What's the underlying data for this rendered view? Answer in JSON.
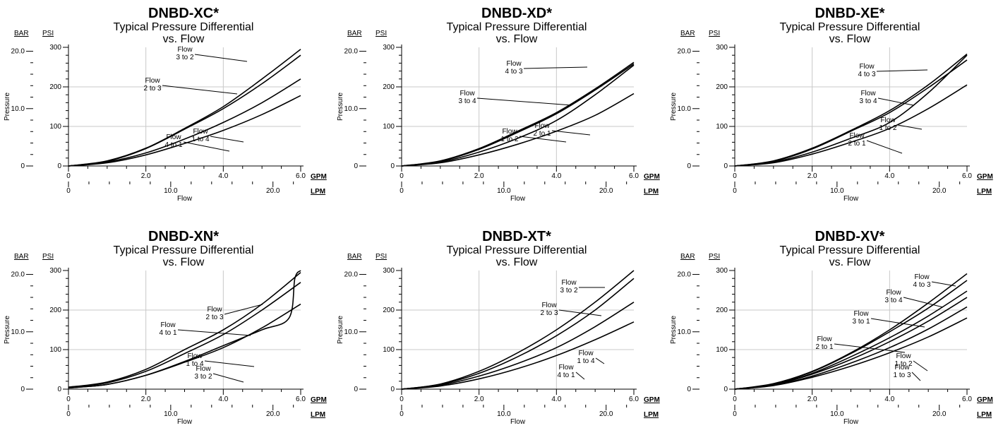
{
  "chart_data": [
    {
      "type": "line",
      "title": "DNBD-XC*",
      "subtitle_line1": "Typical Pressure Differential",
      "subtitle_line2": "vs. Flow",
      "xlabel": "Flow",
      "ylabel": "Pressure",
      "y_units": [
        "BAR",
        "PSI"
      ],
      "x_units": [
        "GPM",
        "LPM"
      ],
      "xlim": [
        0,
        6
      ],
      "ylim": [
        0,
        300
      ],
      "grid": true,
      "series": [
        {
          "name": "Flow 3 to 2",
          "label": [
            "Flow",
            "3 to 2"
          ],
          "x": [
            0,
            1,
            2,
            3,
            4,
            5,
            6
          ],
          "y": [
            0,
            13,
            45,
            95,
            150,
            220,
            295
          ]
        },
        {
          "name": "Flow 2 to 3",
          "label": [
            "Flow",
            "2 to 3"
          ],
          "x": [
            0,
            1,
            2,
            3,
            4,
            5,
            6
          ],
          "y": [
            0,
            12,
            44,
            93,
            145,
            208,
            280
          ]
        },
        {
          "name": "Flow 1 to 4",
          "label": [
            "Flow",
            "1 to 4"
          ],
          "x": [
            0,
            1,
            2,
            3,
            4,
            5,
            6
          ],
          "y": [
            0,
            10,
            33,
            68,
            110,
            160,
            220
          ]
        },
        {
          "name": "Flow 4 to 1",
          "label": [
            "Flow",
            "4 to 1"
          ],
          "x": [
            0,
            1,
            2,
            3,
            4,
            5,
            6
          ],
          "y": [
            0,
            8,
            28,
            57,
            90,
            130,
            178
          ]
        }
      ]
    },
    {
      "type": "line",
      "title": "DNBD-XD*",
      "subtitle_line1": "Typical Pressure Differential",
      "subtitle_line2": "vs. Flow",
      "xlabel": "Flow",
      "ylabel": "Pressure",
      "y_units": [
        "BAR",
        "PSI"
      ],
      "x_units": [
        "GPM",
        "LPM"
      ],
      "xlim": [
        0,
        6
      ],
      "ylim": [
        0,
        300
      ],
      "grid": true,
      "series": [
        {
          "name": "Flow 4 to 3",
          "label": [
            "Flow",
            "4 to 3"
          ],
          "x": [
            0,
            1,
            2,
            3,
            4,
            5,
            6
          ],
          "y": [
            0,
            13,
            44,
            88,
            135,
            195,
            262
          ]
        },
        {
          "name": "Flow 3 to 4",
          "label": [
            "Flow",
            "3 to 4"
          ],
          "x": [
            0,
            1,
            2,
            3,
            4,
            5,
            6
          ],
          "y": [
            0,
            12,
            42,
            85,
            132,
            192,
            258
          ]
        },
        {
          "name": "Flow 2 to 1",
          "label": [
            "Flow",
            "2 to 1"
          ],
          "x": [
            0,
            1,
            2,
            3,
            4,
            5,
            6
          ],
          "y": [
            0,
            10,
            35,
            70,
            115,
            180,
            255
          ]
        },
        {
          "name": "Flow 1 to 2",
          "label": [
            "Flow",
            "1 to 2"
          ],
          "x": [
            0,
            1,
            2,
            3,
            4,
            5,
            6
          ],
          "y": [
            0,
            8,
            28,
            55,
            88,
            128,
            183
          ]
        }
      ]
    },
    {
      "type": "line",
      "title": "DNBD-XE*",
      "subtitle_line1": "Typical Pressure Differential",
      "subtitle_line2": "vs. Flow",
      "xlabel": "Flow",
      "ylabel": "Pressure",
      "y_units": [
        "BAR",
        "PSI"
      ],
      "x_units": [
        "GPM",
        "LPM"
      ],
      "xlim": [
        0,
        6
      ],
      "ylim": [
        0,
        300
      ],
      "grid": true,
      "series": [
        {
          "name": "Flow 4 to 3",
          "label": [
            "Flow",
            "4 to 3"
          ],
          "x": [
            0,
            1,
            2,
            3,
            4,
            5,
            6
          ],
          "y": [
            0,
            13,
            45,
            90,
            140,
            205,
            283
          ]
        },
        {
          "name": "Flow 3 to 4",
          "label": [
            "Flow",
            "3 to 4"
          ],
          "x": [
            0,
            1,
            2,
            3,
            4,
            5,
            6
          ],
          "y": [
            0,
            12,
            43,
            88,
            135,
            198,
            268
          ]
        },
        {
          "name": "Flow 2 to 1",
          "label": [
            "Flow",
            "2 to 1"
          ],
          "x": [
            0,
            1,
            2,
            3,
            4,
            5,
            6
          ],
          "y": [
            0,
            10,
            35,
            70,
            110,
            185,
            280
          ]
        },
        {
          "name": "Flow 1 to 2",
          "label": [
            "Flow",
            "1 to 2"
          ],
          "x": [
            0,
            1,
            2,
            3,
            4,
            5,
            6
          ],
          "y": [
            0,
            8,
            30,
            60,
            95,
            145,
            205
          ]
        }
      ]
    },
    {
      "type": "line",
      "title": "DNBD-XN*",
      "subtitle_line1": "Typical Pressure Differential",
      "subtitle_line2": "vs. Flow",
      "xlabel": "Flow",
      "ylabel": "Pressure",
      "y_units": [
        "BAR",
        "PSI"
      ],
      "x_units": [
        "GPM",
        "LPM"
      ],
      "xlim": [
        0,
        6
      ],
      "ylim": [
        0,
        300
      ],
      "grid": true,
      "series": [
        {
          "name": "Flow 2 to 3",
          "label": [
            "Flow",
            "2 to 3"
          ],
          "x": [
            0,
            1,
            2,
            3,
            4,
            5,
            6
          ],
          "y": [
            5,
            18,
            50,
            100,
            150,
            215,
            295
          ]
        },
        {
          "name": "Flow 4 to 1",
          "label": [
            "Flow",
            "4 to 1"
          ],
          "x": [
            0,
            1,
            2,
            3,
            4,
            5,
            6
          ],
          "y": [
            5,
            16,
            45,
            90,
            138,
            200,
            270
          ]
        },
        {
          "name": "Flow 1 to 4",
          "label": [
            "Flow",
            "1 to 4"
          ],
          "x": [
            0,
            1,
            2,
            3,
            4,
            5,
            6
          ],
          "y": [
            3,
            12,
            35,
            68,
            105,
            155,
            215
          ]
        },
        {
          "name": "Flow 3 to 2",
          "label": [
            "Flow",
            "3 to 2"
          ],
          "x": [
            0,
            1,
            2,
            3,
            4,
            5,
            5.7,
            5.85,
            6
          ],
          "y": [
            3,
            12,
            35,
            70,
            110,
            150,
            180,
            280,
            300
          ]
        }
      ]
    },
    {
      "type": "line",
      "title": "DNBD-XT*",
      "subtitle_line1": "Typical Pressure Differential",
      "subtitle_line2": "vs. Flow",
      "xlabel": "Flow",
      "ylabel": "Pressure",
      "y_units": [
        "BAR",
        "PSI"
      ],
      "x_units": [
        "GPM",
        "LPM"
      ],
      "xlim": [
        0,
        6
      ],
      "ylim": [
        0,
        300
      ],
      "grid": true,
      "series": [
        {
          "name": "Flow 3 to 2",
          "label": [
            "Flow",
            "3 to 2"
          ],
          "x": [
            0,
            1,
            2,
            3,
            4,
            5,
            6
          ],
          "y": [
            0,
            13,
            45,
            92,
            150,
            220,
            300
          ]
        },
        {
          "name": "Flow 2 to 3",
          "label": [
            "Flow",
            "2 to 3"
          ],
          "x": [
            0,
            1,
            2,
            3,
            4,
            5,
            6
          ],
          "y": [
            0,
            12,
            40,
            82,
            135,
            200,
            280
          ]
        },
        {
          "name": "Flow 1 to 4",
          "label": [
            "Flow",
            "1 to 4"
          ],
          "x": [
            0,
            1,
            2,
            3,
            4,
            5,
            6
          ],
          "y": [
            0,
            10,
            33,
            65,
            105,
            158,
            220
          ]
        },
        {
          "name": "Flow 4 to 1",
          "label": [
            "Flow",
            "4 to 1"
          ],
          "x": [
            0,
            1,
            2,
            3,
            4,
            5,
            6
          ],
          "y": [
            0,
            8,
            26,
            52,
            85,
            125,
            170
          ]
        }
      ]
    },
    {
      "type": "line",
      "title": "DNBD-XV*",
      "subtitle_line1": "Typical Pressure Differential",
      "subtitle_line2": "vs. Flow",
      "xlabel": "Flow",
      "ylabel": "Pressure",
      "y_units": [
        "BAR",
        "PSI"
      ],
      "x_units": [
        "GPM",
        "LPM"
      ],
      "xlim": [
        0,
        6
      ],
      "ylim": [
        0,
        300
      ],
      "grid": true,
      "series": [
        {
          "name": "Flow 4 to 3",
          "label": [
            "Flow",
            "4 to 3"
          ],
          "x": [
            0,
            1,
            2,
            3,
            4,
            5,
            6
          ],
          "y": [
            0,
            14,
            45,
            92,
            150,
            218,
            292
          ]
        },
        {
          "name": "Flow 3 to 4",
          "label": [
            "Flow",
            "3 to 4"
          ],
          "x": [
            0,
            1,
            2,
            3,
            4,
            5,
            6
          ],
          "y": [
            0,
            13,
            44,
            90,
            145,
            205,
            275
          ]
        },
        {
          "name": "Flow 3 to 1",
          "label": [
            "Flow",
            "3 to 1"
          ],
          "x": [
            0,
            1,
            2,
            3,
            4,
            5,
            6
          ],
          "y": [
            0,
            12,
            40,
            82,
            130,
            185,
            248
          ]
        },
        {
          "name": "Flow 2 to 1",
          "label": [
            "Flow",
            "2 to 1"
          ],
          "x": [
            0,
            1,
            2,
            3,
            4,
            5,
            6
          ],
          "y": [
            0,
            11,
            38,
            75,
            120,
            172,
            232
          ]
        },
        {
          "name": "Flow 1 to 2",
          "label": [
            "Flow",
            "1 to 2"
          ],
          "x": [
            0,
            1,
            2,
            3,
            4,
            5,
            6
          ],
          "y": [
            0,
            10,
            33,
            66,
            105,
            152,
            208
          ]
        },
        {
          "name": "Flow 1 to 3",
          "label": [
            "Flow",
            "1 to 3"
          ],
          "x": [
            0,
            1,
            2,
            3,
            4,
            5,
            6
          ],
          "y": [
            0,
            9,
            30,
            58,
            92,
            132,
            180
          ]
        }
      ]
    }
  ]
}
